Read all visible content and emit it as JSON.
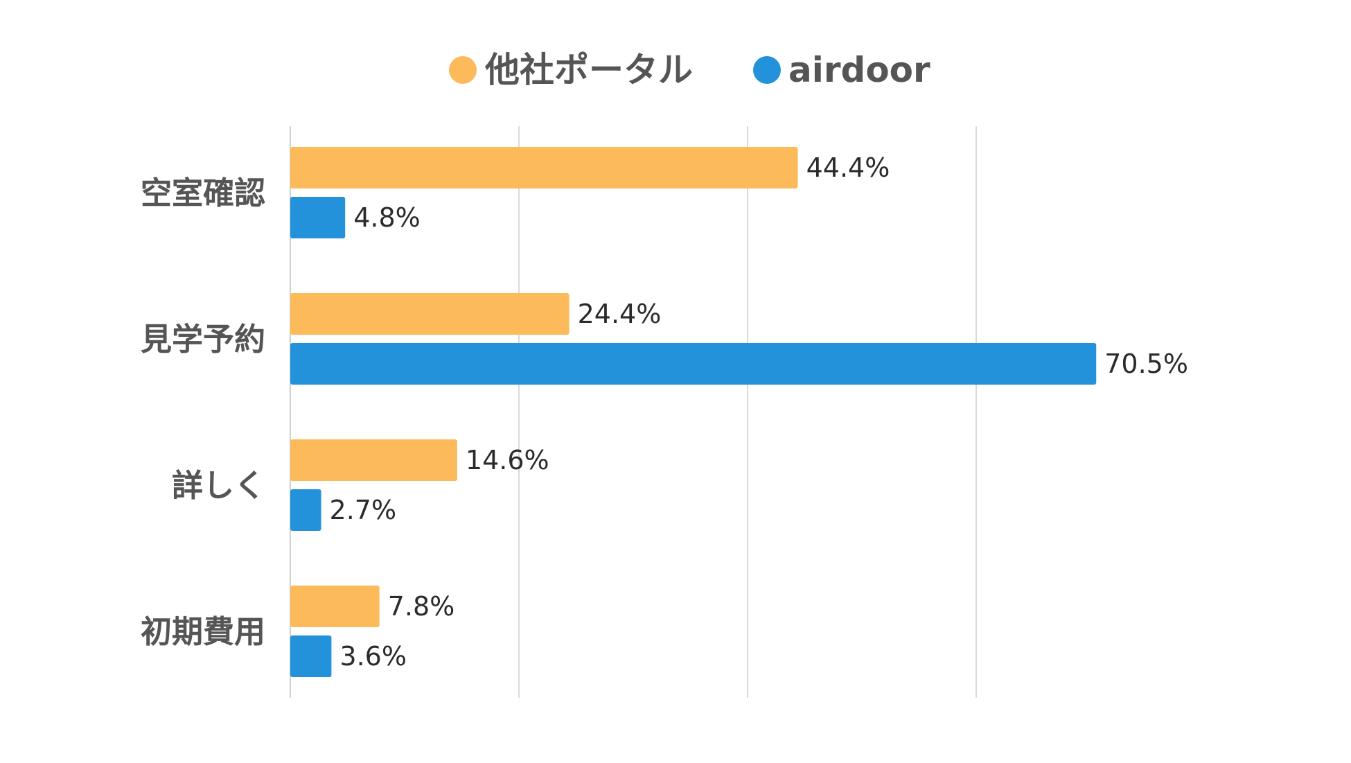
{
  "chart_data": {
    "type": "bar",
    "orientation": "horizontal",
    "categories": [
      "空室確認",
      "見学予約",
      "詳しく",
      "初期費用"
    ],
    "series": [
      {
        "name": "他社ポータル",
        "color": "#FDBA5B",
        "values": [
          44.4,
          24.4,
          14.6,
          7.8
        ],
        "labels": [
          "44.4%",
          "24.4%",
          "14.6%",
          "7.8%"
        ]
      },
      {
        "name": "airdoor",
        "color": "#2492DB",
        "values": [
          4.8,
          70.5,
          2.7,
          3.6
        ],
        "labels": [
          "4.8%",
          "70.5%",
          "2.7%",
          "3.6%"
        ]
      }
    ],
    "xlim": [
      0,
      80
    ],
    "grid": true,
    "legend_position": "top-center",
    "gridline_color": "#D9D9D9"
  }
}
